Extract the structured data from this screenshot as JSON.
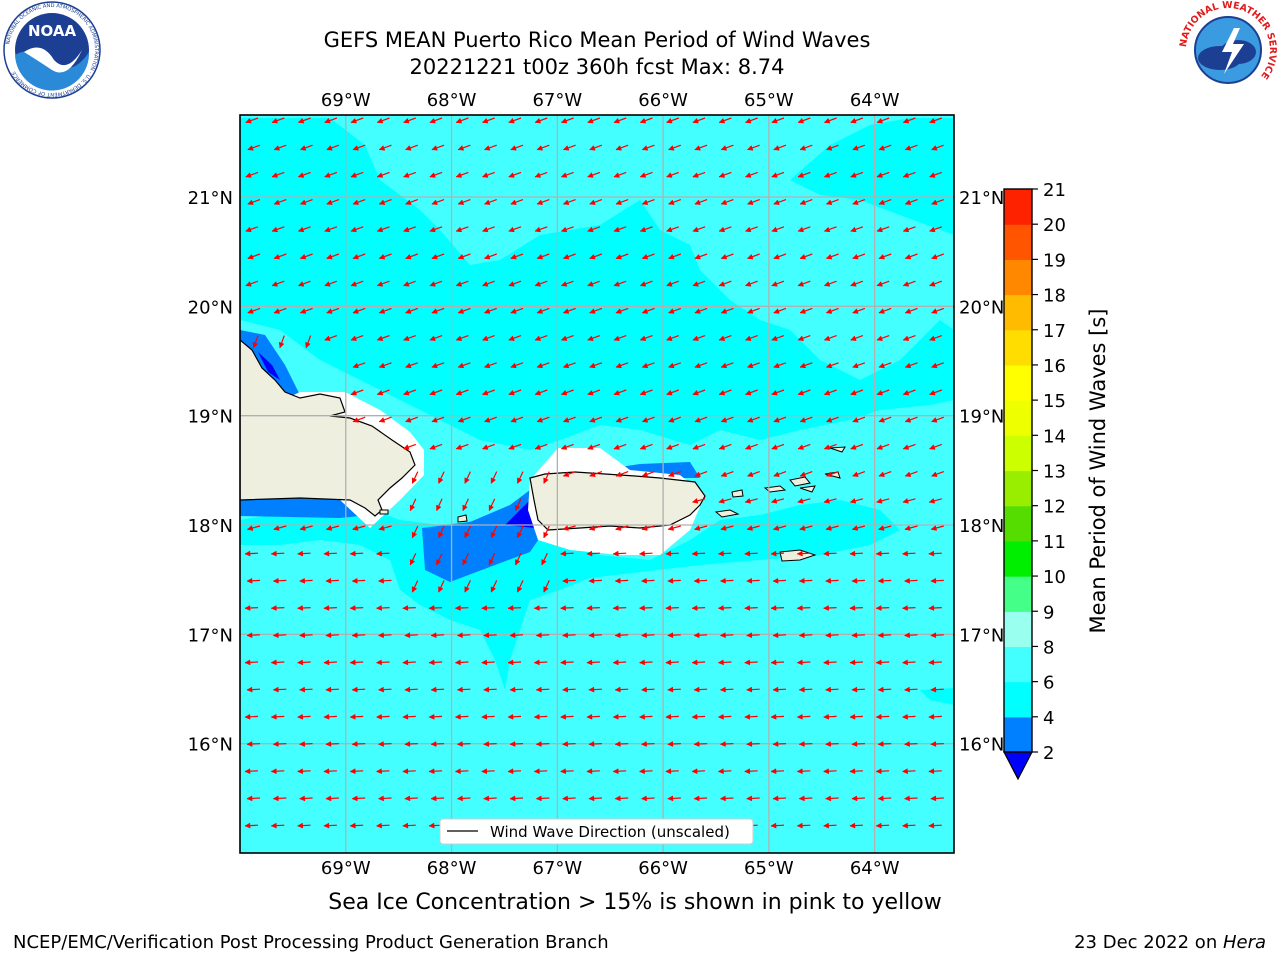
{
  "title": {
    "line1": "GEFS MEAN Puerto Rico Mean Period of Wind Waves",
    "line2": "20221221 t00z 360h fcst   Max: 8.74"
  },
  "logos": {
    "left": {
      "icon": "noaa-logo",
      "text": "NOAA",
      "ring": "NATIONAL OCEANIC AND ATMOSPHERIC ADMINISTRATION · U.S. DEPARTMENT OF COMMERCE"
    },
    "right": {
      "icon": "nws-logo",
      "ring": "NATIONAL WEATHER SERVICE"
    }
  },
  "map": {
    "lon_labels": [
      "69°W",
      "68°W",
      "67°W",
      "66°W",
      "65°W",
      "64°W"
    ],
    "lat_labels": [
      "21°N",
      "20°N",
      "19°N",
      "18°N",
      "17°N",
      "16°N"
    ],
    "lon_values": [
      -69,
      -68,
      -67,
      -66,
      -65,
      -64
    ],
    "lat_values": [
      21,
      20,
      19,
      18,
      17,
      16
    ],
    "extent": {
      "lon_min": -70.0,
      "lon_max": -63.25,
      "lat_min": 15.0,
      "lat_max": 21.75
    },
    "ocean_color": "#44ffff",
    "light_band_color": "#00ffff",
    "land_color": "#efefdf",
    "arrow_color": "#ff0000",
    "legend_label": "Wind Wave Direction (unscaled)"
  },
  "colorbar": {
    "label": "Mean Period of Wind Waves [s]",
    "ticks": [
      "2",
      "4",
      "6",
      "8",
      "9",
      "10",
      "11",
      "12",
      "13",
      "14",
      "15",
      "16",
      "17",
      "18",
      "19",
      "20",
      "21"
    ],
    "colors": [
      "#0000ff",
      "#0080ff",
      "#00ffff",
      "#44ffff",
      "#99ffee",
      "#44ff88",
      "#00ee00",
      "#55dd00",
      "#99ee00",
      "#ccff00",
      "#eeff00",
      "#ffff00",
      "#ffdd00",
      "#ffbb00",
      "#ff8800",
      "#ff5500",
      "#ff2200",
      "#ff0000"
    ],
    "extend_min_color": "#0000ff"
  },
  "subcaption": "Sea Ice Concentration > 15% is shown in pink to yellow",
  "footer": {
    "left": "NCEP/EMC/Verification Post Processing Product Generation Branch",
    "right_prefix": "23 Dec 2022 on ",
    "right_machine": "Hera"
  }
}
